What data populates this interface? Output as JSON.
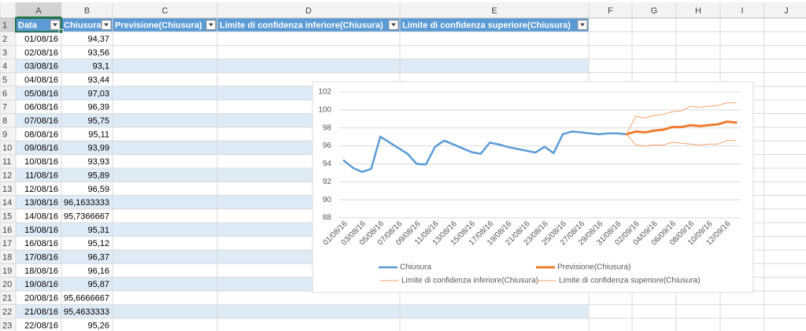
{
  "sheet": {
    "columns": [
      "A",
      "B",
      "C",
      "D",
      "E",
      "F",
      "G",
      "H",
      "I",
      "J"
    ],
    "row_numbers": [
      1,
      2,
      3,
      4,
      5,
      6,
      7,
      8,
      9,
      10,
      11,
      12,
      13,
      14,
      15,
      16,
      17,
      18,
      19,
      20,
      21,
      22,
      23
    ],
    "header": [
      "Data",
      "Chiusura",
      "Previsione(Chiusura)",
      "Limite di confidenza inferiore(Chiusura)",
      "Limite di confidenza superiore(Chiusura)"
    ],
    "rows": [
      [
        "01/08/16",
        "94,37"
      ],
      [
        "02/08/16",
        "93,56"
      ],
      [
        "03/08/16",
        "93,1"
      ],
      [
        "04/08/16",
        "93,44"
      ],
      [
        "05/08/16",
        "97,03"
      ],
      [
        "06/08/16",
        "96,39"
      ],
      [
        "07/08/16",
        "95,75"
      ],
      [
        "08/08/16",
        "95,11"
      ],
      [
        "09/08/16",
        "93,99"
      ],
      [
        "10/08/16",
        "93,93"
      ],
      [
        "11/08/16",
        "95,89"
      ],
      [
        "12/08/16",
        "96,59"
      ],
      [
        "13/08/16",
        "96,1633333"
      ],
      [
        "14/08/16",
        "95,7366667"
      ],
      [
        "15/08/16",
        "95,31"
      ],
      [
        "16/08/16",
        "95,12"
      ],
      [
        "17/08/16",
        "96,37"
      ],
      [
        "18/08/16",
        "96,16"
      ],
      [
        "19/08/16",
        "95,87"
      ],
      [
        "20/08/16",
        "95,6666667"
      ],
      [
        "21/08/16",
        "95,4633333"
      ],
      [
        "22/08/16",
        "95,26"
      ]
    ]
  },
  "chart_data": {
    "type": "line",
    "categories": [
      "01/08/16",
      null,
      "03/08/16",
      null,
      "05/08/16",
      null,
      "07/08/16",
      null,
      "09/08/16",
      null,
      "11/08/16",
      null,
      "13/08/16",
      null,
      "15/08/16",
      null,
      "17/08/16",
      null,
      "19/08/16",
      null,
      "21/08/16",
      null,
      "23/08/16",
      null,
      "25/08/16",
      null,
      "27/08/16",
      null,
      "29/08/16",
      null,
      "31/08/16",
      null,
      "02/09/16",
      null,
      "04/09/16",
      null,
      "06/09/16",
      null,
      "08/09/16",
      null,
      "10/09/16",
      null,
      "12/09/16",
      null
    ],
    "series": [
      {
        "name": "Chiusura",
        "color": "#5b9bd5",
        "width": 2.5,
        "values": [
          94.37,
          93.56,
          93.1,
          93.44,
          97.03,
          96.39,
          95.75,
          95.11,
          93.99,
          93.93,
          95.89,
          96.59,
          96.1633333,
          95.7366667,
          95.31,
          95.12,
          96.37,
          96.16,
          95.87,
          95.6666667,
          95.4633333,
          95.26,
          95.9,
          95.2,
          97.3,
          97.6,
          97.5,
          97.4,
          97.3,
          97.4,
          97.4,
          97.3,
          null,
          null,
          null,
          null,
          null,
          null,
          null,
          null,
          null,
          null,
          null,
          null
        ]
      },
      {
        "name": "Previsione(Chiusura)",
        "color": "#ed7d31",
        "width": 3,
        "values": [
          null,
          null,
          null,
          null,
          null,
          null,
          null,
          null,
          null,
          null,
          null,
          null,
          null,
          null,
          null,
          null,
          null,
          null,
          null,
          null,
          null,
          null,
          null,
          null,
          null,
          null,
          null,
          null,
          null,
          null,
          null,
          97.3,
          97.6,
          97.5,
          97.7,
          97.8,
          98.1,
          98.1,
          98.3,
          98.2,
          98.3,
          98.4,
          98.7,
          98.6
        ]
      },
      {
        "name": "Limite di confidenza inferiore(Chiusura)",
        "color": "#f0a36c",
        "width": 1,
        "values": [
          null,
          null,
          null,
          null,
          null,
          null,
          null,
          null,
          null,
          null,
          null,
          null,
          null,
          null,
          null,
          null,
          null,
          null,
          null,
          null,
          null,
          null,
          null,
          null,
          null,
          null,
          null,
          null,
          null,
          null,
          null,
          97.3,
          96.1,
          96.0,
          96.1,
          96.1,
          96.4,
          96.3,
          96.2,
          96.1,
          96.2,
          96.2,
          96.6,
          96.6
        ]
      },
      {
        "name": "Limite di confidenza superiore(Chiusura)",
        "color": "#f0a36c",
        "width": 1,
        "values": [
          null,
          null,
          null,
          null,
          null,
          null,
          null,
          null,
          null,
          null,
          null,
          null,
          null,
          null,
          null,
          null,
          null,
          null,
          null,
          null,
          null,
          null,
          null,
          null,
          null,
          null,
          null,
          null,
          null,
          null,
          null,
          97.3,
          99.3,
          99.1,
          99.4,
          99.5,
          99.8,
          99.9,
          100.4,
          100.3,
          100.4,
          100.5,
          100.8,
          100.8
        ]
      }
    ],
    "ylim": [
      88,
      102
    ],
    "yticks": [
      88,
      90,
      92,
      94,
      96,
      98,
      100,
      102
    ],
    "grid": true,
    "legend": "bottom"
  }
}
